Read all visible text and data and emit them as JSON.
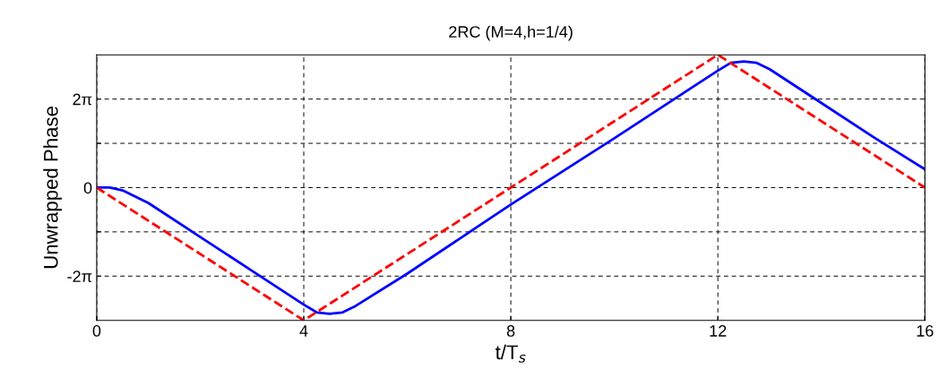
{
  "chart_data": {
    "type": "line",
    "title": "2RC (M=4,h=1/4)",
    "xlabel": "t/T$_{s}$",
    "ylabel": "Unwrapped Phase",
    "xlim": [
      0,
      16
    ],
    "xticks": [
      0,
      4,
      8,
      12,
      16
    ],
    "ylim": [
      -9.42,
      9.42
    ],
    "yticks": [
      {
        "value": -6.28,
        "label": "-2π"
      },
      {
        "value": -3.14,
        "label": null
      },
      0,
      {
        "value": 3.14,
        "label": null
      },
      {
        "value": 6.28,
        "label": "2π"
      }
    ],
    "grid": true,
    "legend": false,
    "series": [
      {
        "color": "#0000ff",
        "line_style": "solid",
        "x": [
          0,
          0.25,
          0.5,
          1,
          2,
          3,
          4,
          4.25,
          4.5,
          4.75,
          5,
          6,
          8,
          10,
          12,
          12.25,
          12.5,
          12.75,
          13,
          14,
          15,
          16
        ],
        "values": [
          0,
          0,
          -0.2,
          -1.1,
          -3.5,
          -5.9,
          -8.3,
          -8.85,
          -8.95,
          -8.85,
          -8.4,
          -6.1,
          -1.2,
          3.5,
          8.3,
          8.85,
          8.95,
          8.85,
          8.4,
          6.0,
          3.6,
          1.3
        ]
      },
      {
        "color": "#ff0000",
        "line_style": "dashed",
        "x": [
          0,
          4,
          12,
          16
        ],
        "values": [
          0,
          -9.42,
          9.42,
          0
        ]
      }
    ]
  }
}
